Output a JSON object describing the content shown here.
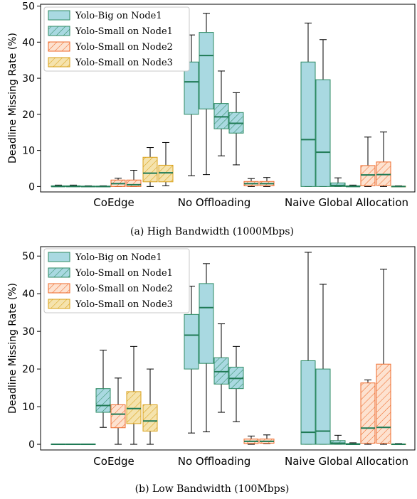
{
  "chart_data": [
    {
      "type": "box",
      "caption": "(a)  High Bandwidth (1000Mbps)",
      "ylabel": "Deadline Missing Rate (%)",
      "xlabel": "",
      "ylim": [
        -1.5,
        50.5
      ],
      "yticks": [
        0,
        10,
        20,
        30,
        40,
        50
      ],
      "grid": false,
      "legend_position": "top-left",
      "categories": [
        "CoEdge",
        "No Offloading",
        "Naive Global Allocation"
      ],
      "series": [
        {
          "name": "Yolo-Big on Node1",
          "face": "#a9d9e1",
          "edge": "#2e8b64",
          "hatch": false,
          "boxes": [
            {
              "whislo": 0,
              "q1": 0,
              "med": 0,
              "q3": 0.2,
              "whishi": 0.4
            },
            {
              "whislo": 3,
              "q1": 20,
              "med": 29,
              "q3": 34.5,
              "whishi": 42
            },
            {
              "whislo": 0,
              "q1": 0,
              "med": 13,
              "q3": 34.5,
              "whishi": 45.3
            }
          ]
        },
        {
          "name": "Yolo-Big on Node1",
          "face": "#a9d9e1",
          "edge": "#2e8b64",
          "hatch": false,
          "boxes": [
            {
              "whislo": 0,
              "q1": 0,
              "med": 0,
              "q3": 0.2,
              "whishi": 0.4
            },
            {
              "whislo": 3.3,
              "q1": 21.5,
              "med": 36.3,
              "q3": 42.7,
              "whishi": 48
            },
            {
              "whislo": 0,
              "q1": 0,
              "med": 9.5,
              "q3": 29.6,
              "whishi": 40.7
            }
          ]
        },
        {
          "name": "Yolo-Small on Node1",
          "face": "#a9d9e1",
          "edge": "#2e8b64",
          "hatch": true,
          "boxes": [
            {
              "whislo": 0,
              "q1": 0,
              "med": 0,
              "q3": 0.1,
              "whishi": 0.2
            },
            {
              "whislo": 8.5,
              "q1": 16,
              "med": 19.3,
              "q3": 23,
              "whishi": 32
            },
            {
              "whislo": 0,
              "q1": 0,
              "med": 0.3,
              "q3": 1.0,
              "whishi": 2.4
            }
          ]
        },
        {
          "name": "Yolo-Small on Node1",
          "face": "#a9d9e1",
          "edge": "#2e8b64",
          "hatch": true,
          "boxes": [
            {
              "whislo": 0,
              "q1": 0,
              "med": 0,
              "q3": 0.1,
              "whishi": 0.2
            },
            {
              "whislo": 6,
              "q1": 14.8,
              "med": 17.5,
              "q3": 20.5,
              "whishi": 26
            },
            {
              "whislo": 0,
              "q1": 0,
              "med": 0,
              "q3": 0.2,
              "whishi": 0.4
            }
          ]
        },
        {
          "name": "Yolo-Small on Node2",
          "face": "#fde2d0",
          "edge": "#ef6a2a",
          "hatch": true,
          "boxes": [
            {
              "whislo": 0,
              "q1": 0,
              "med": 0.8,
              "q3": 1.8,
              "whishi": 2.3
            },
            {
              "whislo": 0,
              "q1": 0.2,
              "med": 0.8,
              "q3": 1.4,
              "whishi": 2.2
            },
            {
              "whislo": 0,
              "q1": 0.2,
              "med": 3.2,
              "q3": 5.8,
              "whishi": 13.7
            }
          ]
        },
        {
          "name": "Yolo-Small on Node2",
          "face": "#fde2d0",
          "edge": "#ef6a2a",
          "hatch": true,
          "boxes": [
            {
              "whislo": 0,
              "q1": 0,
              "med": 0.5,
              "q3": 1.8,
              "whishi": 4.5
            },
            {
              "whislo": 0,
              "q1": 0.2,
              "med": 0.8,
              "q3": 1.4,
              "whishi": 2.5
            },
            {
              "whislo": 0,
              "q1": 0.3,
              "med": 3.3,
              "q3": 6.8,
              "whishi": 15.1
            }
          ]
        },
        {
          "name": "Yolo-Small on Node3",
          "face": "#f5e3ad",
          "edge": "#d9a018",
          "hatch": true,
          "boxes": [
            {
              "whislo": 0,
              "q1": 1.3,
              "med": 3.7,
              "q3": 8.1,
              "whishi": 10.8
            },
            {
              "whislo": 0,
              "q1": 0,
              "med": 0,
              "q3": 0.1,
              "whishi": 0.2
            }
          ]
        },
        {
          "name": "Yolo-Small on Node3",
          "face": "#f5e3ad",
          "edge": "#d9a018",
          "hatch": true,
          "boxes": [
            {
              "whislo": 0.2,
              "q1": 1.3,
              "med": 3.8,
              "q3": 5.9,
              "whishi": 12.2
            }
          ]
        }
      ]
    },
    {
      "type": "box",
      "caption": "(b)  Low Bandwidth (100Mbps)",
      "ylabel": "Deadline Missing Rate (%)",
      "xlabel": "",
      "ylim": [
        -1.5,
        52.5
      ],
      "yticks": [
        0,
        10,
        20,
        30,
        40,
        50
      ],
      "grid": false,
      "legend_position": "top-left",
      "categories": [
        "CoEdge",
        "No Offloading",
        "Naive Global Allocation"
      ],
      "series": [
        {
          "name": "Yolo-Big on Node1",
          "face": "#a9d9e1",
          "edge": "#2e8b64",
          "hatch": false,
          "boxes": [
            {
              "whislo": 0,
              "q1": 0,
              "med": 0,
              "q3": 0.1,
              "whishi": 0.1
            },
            {
              "whislo": 3,
              "q1": 20,
              "med": 29,
              "q3": 34.5,
              "whishi": 42
            },
            {
              "whislo": 0,
              "q1": 0,
              "med": 3.2,
              "q3": 22.2,
              "whishi": 51
            }
          ]
        },
        {
          "name": "Yolo-Big on Node1",
          "face": "#a9d9e1",
          "edge": "#2e8b64",
          "hatch": false,
          "boxes": [
            {
              "whislo": 0,
              "q1": 0,
              "med": 0,
              "q3": 0.1,
              "whishi": 0.1
            },
            {
              "whislo": 3.3,
              "q1": 21.5,
              "med": 36.3,
              "q3": 42.7,
              "whishi": 48
            },
            {
              "whislo": 0,
              "q1": 0,
              "med": 3.5,
              "q3": 20,
              "whishi": 42.5
            }
          ]
        },
        {
          "name": "Yolo-Small on Node1",
          "face": "#a9d9e1",
          "edge": "#2e8b64",
          "hatch": true,
          "boxes": [
            {
              "whislo": 0,
              "q1": 0,
              "med": 0,
              "q3": 0.1,
              "whishi": 0.1
            },
            {
              "whislo": 8.5,
              "q1": 16,
              "med": 19.3,
              "q3": 23,
              "whishi": 32
            },
            {
              "whislo": 0,
              "q1": 0,
              "med": 0.3,
              "q3": 1.0,
              "whishi": 2.4
            }
          ]
        },
        {
          "name": "Yolo-Small on Node1",
          "face": "#a9d9e1",
          "edge": "#2e8b64",
          "hatch": true,
          "boxes": [
            {
              "whislo": 4.5,
              "q1": 8.5,
              "med": 10.3,
              "q3": 14.8,
              "whishi": 25
            },
            {
              "whislo": 6,
              "q1": 14.8,
              "med": 17.5,
              "q3": 20.5,
              "whishi": 26
            },
            {
              "whislo": 0,
              "q1": 0,
              "med": 0,
              "q3": 0.2,
              "whishi": 0.4
            }
          ]
        },
        {
          "name": "Yolo-Small on Node2",
          "face": "#fde2d0",
          "edge": "#ef6a2a",
          "hatch": true,
          "boxes": [
            {
              "whislo": 0,
              "q1": 4.4,
              "med": 8,
              "q3": 10.5,
              "whishi": 17.6
            },
            {
              "whislo": 0,
              "q1": 0.2,
              "med": 0.8,
              "q3": 1.4,
              "whishi": 2.2
            },
            {
              "whislo": 0,
              "q1": 0.3,
              "med": 4.3,
              "q3": 16.3,
              "whishi": 17.1
            }
          ]
        },
        {
          "name": "Yolo-Small on Node2",
          "face": "#fde2d0",
          "edge": "#ef6a2a",
          "hatch": true,
          "boxes": [
            {
              "whislo": 0.2,
              "q1": 0.3,
              "med": 0.8,
              "q3": 1.4,
              "whishi": 2.5
            },
            {
              "whislo": 0,
              "q1": 0.3,
              "med": 4.5,
              "q3": 21.3,
              "whishi": 46.5
            }
          ]
        },
        {
          "name": "Yolo-Small on Node3",
          "face": "#f5e3ad",
          "edge": "#d9a018",
          "hatch": true,
          "boxes": [
            {
              "whislo": 0,
              "q1": 5.5,
              "med": 9.5,
              "q3": 14,
              "whishi": 26
            },
            {
              "whislo": 0,
              "q1": 0,
              "med": 0,
              "q3": 0.1,
              "whishi": 0.2
            }
          ]
        },
        {
          "name": "Yolo-Small on Node3",
          "face": "#f5e3ad",
          "edge": "#d9a018",
          "hatch": true,
          "boxes": [
            {
              "whislo": 0,
              "q1": 3.5,
              "med": 6.2,
              "q3": 10.5,
              "whishi": 20
            }
          ]
        }
      ]
    }
  ]
}
